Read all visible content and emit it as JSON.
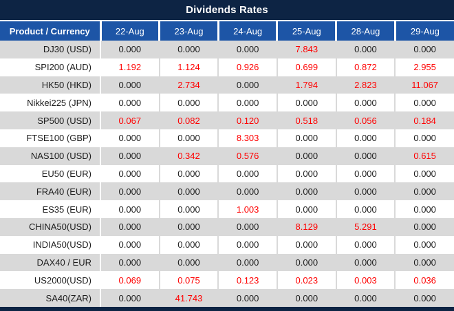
{
  "title": "Dividends Rates",
  "colors": {
    "title_bar": "#0d2444",
    "header_blue": "#1d55a6",
    "row_gray": "#d9d9d9",
    "row_white": "#ffffff",
    "value_red": "#ff0000",
    "value_black": "#1c1c1c"
  },
  "table": {
    "product_header": "Product / Currency",
    "date_headers": [
      "22-Aug",
      "23-Aug",
      "24-Aug",
      "25-Aug",
      "28-Aug",
      "29-Aug"
    ],
    "rows": [
      {
        "product": "DJ30 (USD)",
        "values": [
          "0.000",
          "0.000",
          "0.000",
          "7.843",
          "0.000",
          "0.000"
        ]
      },
      {
        "product": "SPI200 (AUD)",
        "values": [
          "1.192",
          "1.124",
          "0.926",
          "0.699",
          "0.872",
          "2.955"
        ]
      },
      {
        "product": "HK50 (HKD)",
        "values": [
          "0.000",
          "2.734",
          "0.000",
          "1.794",
          "2.823",
          "11.067"
        ]
      },
      {
        "product": "Nikkei225 (JPN)",
        "values": [
          "0.000",
          "0.000",
          "0.000",
          "0.000",
          "0.000",
          "0.000"
        ]
      },
      {
        "product": "SP500 (USD)",
        "values": [
          "0.067",
          "0.082",
          "0.120",
          "0.518",
          "0.056",
          "0.184"
        ]
      },
      {
        "product": "FTSE100 (GBP)",
        "values": [
          "0.000",
          "0.000",
          "8.303",
          "0.000",
          "0.000",
          "0.000"
        ]
      },
      {
        "product": "NAS100 (USD)",
        "values": [
          "0.000",
          "0.342",
          "0.576",
          "0.000",
          "0.000",
          "0.615"
        ]
      },
      {
        "product": "EU50 (EUR)",
        "values": [
          "0.000",
          "0.000",
          "0.000",
          "0.000",
          "0.000",
          "0.000"
        ]
      },
      {
        "product": "FRA40 (EUR)",
        "values": [
          "0.000",
          "0.000",
          "0.000",
          "0.000",
          "0.000",
          "0.000"
        ]
      },
      {
        "product": "ES35 (EUR)",
        "values": [
          "0.000",
          "0.000",
          "1.003",
          "0.000",
          "0.000",
          "0.000"
        ]
      },
      {
        "product": "CHINA50(USD)",
        "values": [
          "0.000",
          "0.000",
          "0.000",
          "8.129",
          "5.291",
          "0.000"
        ]
      },
      {
        "product": "INDIA50(USD)",
        "values": [
          "0.000",
          "0.000",
          "0.000",
          "0.000",
          "0.000",
          "0.000"
        ]
      },
      {
        "product": "DAX40 / EUR",
        "values": [
          "0.000",
          "0.000",
          "0.000",
          "0.000",
          "0.000",
          "0.000"
        ]
      },
      {
        "product": "US2000(USD)",
        "values": [
          "0.069",
          "0.075",
          "0.123",
          "0.023",
          "0.003",
          "0.036"
        ]
      },
      {
        "product": "SA40(ZAR)",
        "values": [
          "0.000",
          "41.743",
          "0.000",
          "0.000",
          "0.000",
          "0.000"
        ]
      }
    ]
  },
  "chart_data": {
    "type": "table",
    "title": "Dividends Rates",
    "columns": [
      "Product / Currency",
      "22-Aug",
      "23-Aug",
      "24-Aug",
      "25-Aug",
      "28-Aug",
      "29-Aug"
    ],
    "note": "non-zero dividend rates rendered in red"
  }
}
